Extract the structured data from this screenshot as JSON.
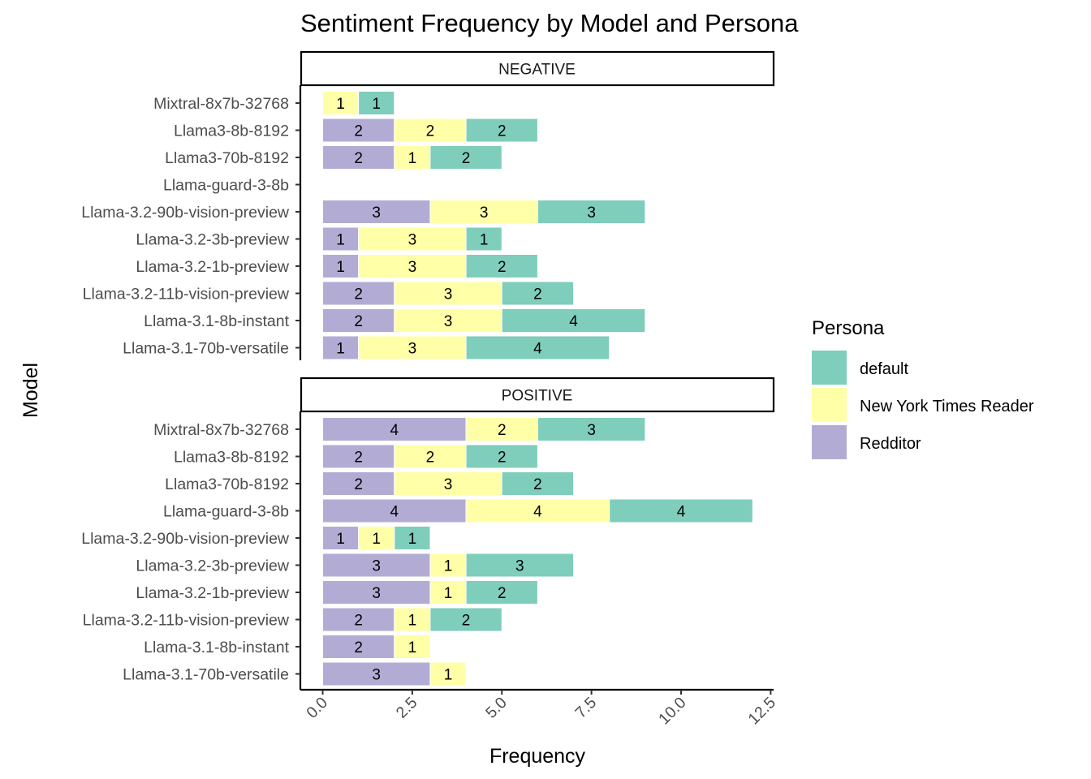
{
  "chart_data": {
    "type": "bar",
    "orientation": "horizontal",
    "stacked": true,
    "title": "Sentiment Frequency by Model and Persona",
    "xlabel": "Frequency",
    "ylabel": "Model",
    "xlim": [
      0,
      12.5
    ],
    "x_ticks": [
      "0.0",
      "2.5",
      "5.0",
      "7.5",
      "10.0",
      "12.5"
    ],
    "grid": false,
    "legend": {
      "title": "Persona",
      "placement": "right",
      "entries": [
        {
          "name": "default",
          "color": "#7fcdbb"
        },
        {
          "name": "New York Times Reader",
          "color": "#ffffa8"
        },
        {
          "name": "Redditor",
          "color": "#b2acd5"
        }
      ]
    },
    "stack_order": [
      "Redditor",
      "New York Times Reader",
      "default"
    ],
    "categories": [
      "Mixtral-8x7b-32768",
      "Llama3-8b-8192",
      "Llama3-70b-8192",
      "Llama-guard-3-8b",
      "Llama-3.2-90b-vision-preview",
      "Llama-3.2-3b-preview",
      "Llama-3.2-1b-preview",
      "Llama-3.2-11b-vision-preview",
      "Llama-3.1-8b-instant",
      "Llama-3.1-70b-versatile"
    ],
    "facets": [
      {
        "name": "NEGATIVE",
        "series": [
          {
            "name": "Redditor",
            "values": [
              0,
              2,
              2,
              0,
              3,
              1,
              1,
              2,
              2,
              1
            ]
          },
          {
            "name": "New York Times Reader",
            "values": [
              1,
              2,
              1,
              0,
              3,
              3,
              3,
              3,
              3,
              3
            ]
          },
          {
            "name": "default",
            "values": [
              1,
              2,
              2,
              0,
              3,
              1,
              2,
              2,
              4,
              4
            ]
          }
        ]
      },
      {
        "name": "POSITIVE",
        "series": [
          {
            "name": "Redditor",
            "values": [
              4,
              2,
              2,
              4,
              1,
              3,
              3,
              2,
              2,
              3
            ]
          },
          {
            "name": "New York Times Reader",
            "values": [
              2,
              2,
              3,
              4,
              1,
              1,
              1,
              1,
              1,
              1
            ]
          },
          {
            "name": "default",
            "values": [
              3,
              2,
              2,
              4,
              1,
              3,
              2,
              2,
              0,
              0
            ]
          }
        ]
      }
    ]
  }
}
